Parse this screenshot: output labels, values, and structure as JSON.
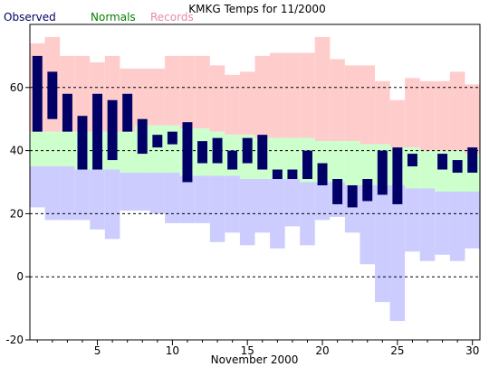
{
  "chart_data": {
    "type": "bar",
    "title": "KMKG Temps for 11/2000",
    "xlabel": "November 2000",
    "ylabel": "",
    "xlim": [
      0.5,
      30.5
    ],
    "ylim": [
      -20,
      80
    ],
    "y_ticks": [
      -20,
      0,
      20,
      40,
      60
    ],
    "x_ticks": [
      5,
      10,
      15,
      20,
      25,
      30
    ],
    "dashed_gridlines": [
      0,
      20,
      40,
      60
    ],
    "legend": {
      "placement": "top-left",
      "entries": [
        {
          "name": "Observed",
          "color": "#000066"
        },
        {
          "name": "Normals",
          "color": "#008000"
        },
        {
          "name": "Records",
          "color": "#e68aa8"
        }
      ]
    },
    "colors": {
      "observed": "#000066",
      "normals": "#ccffcc",
      "record_high": "#ffcccc",
      "record_low": "#ccccff"
    },
    "days": [
      1,
      2,
      3,
      4,
      5,
      6,
      7,
      8,
      9,
      10,
      11,
      12,
      13,
      14,
      15,
      16,
      17,
      18,
      19,
      20,
      21,
      22,
      23,
      24,
      25,
      26,
      27,
      28,
      29,
      30
    ],
    "record_high": [
      74,
      76,
      70,
      70,
      68,
      70,
      66,
      66,
      66,
      70,
      70,
      70,
      67,
      64,
      65,
      70,
      71,
      71,
      71,
      76,
      69,
      67,
      67,
      62,
      56,
      63,
      62,
      62,
      65,
      61
    ],
    "record_low": [
      22,
      18,
      18,
      18,
      15,
      12,
      21,
      21,
      20,
      17,
      17,
      17,
      11,
      14,
      10,
      14,
      9,
      16,
      10,
      18,
      19,
      14,
      4,
      -8,
      -14,
      8,
      5,
      7,
      5,
      9
    ],
    "normal_high": [
      46,
      46,
      46,
      46,
      46,
      46,
      46,
      48,
      48,
      48,
      47,
      47,
      46,
      45,
      45,
      44,
      44,
      44,
      44,
      43,
      43,
      43,
      42,
      42,
      41,
      41,
      40,
      40,
      40,
      39
    ],
    "normal_low": [
      35,
      35,
      35,
      34,
      34,
      34,
      33,
      33,
      33,
      33,
      32,
      32,
      32,
      32,
      31,
      31,
      31,
      31,
      30,
      30,
      30,
      29,
      29,
      29,
      29,
      28,
      28,
      27,
      27,
      27
    ],
    "observed_high": [
      70,
      65,
      58,
      51,
      58,
      56,
      58,
      50,
      45,
      46,
      49,
      43,
      44,
      40,
      44,
      45,
      34,
      34,
      40,
      36,
      31,
      29,
      31,
      40,
      41,
      39,
      null,
      39,
      37,
      41
    ],
    "observed_low": [
      46,
      50,
      46,
      34,
      34,
      37,
      46,
      39,
      41,
      42,
      30,
      36,
      36,
      34,
      36,
      34,
      31,
      31,
      31,
      29,
      23,
      22,
      24,
      26,
      23,
      35,
      null,
      34,
      33,
      33
    ]
  }
}
